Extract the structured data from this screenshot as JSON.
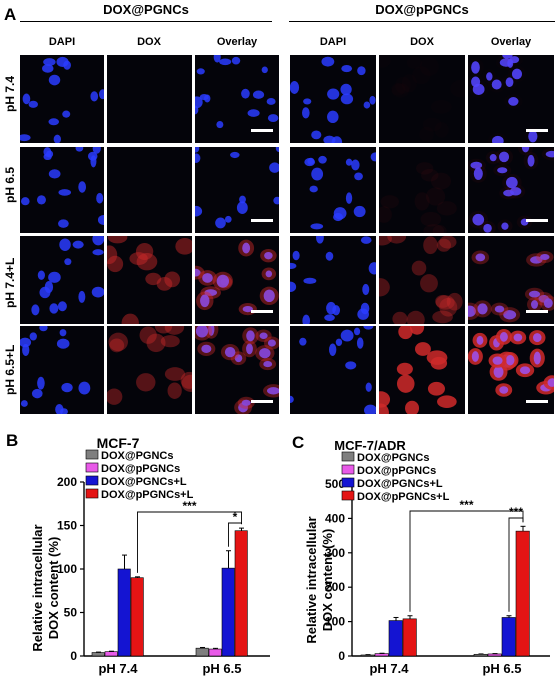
{
  "panel_a": {
    "letter": "A",
    "groups": [
      "DOX@PGNCs",
      "DOX@pPGNCs"
    ],
    "columns": [
      "DAPI",
      "DOX",
      "Overlay",
      "DAPI",
      "DOX",
      "Overlay"
    ],
    "rows": [
      "pH 7.4",
      "pH 6.5",
      "pH 7.4+L",
      "pH 6.5+L"
    ],
    "red_intensity": [
      [
        0,
        0.02
      ],
      [
        0,
        0.05
      ],
      [
        0.45,
        0.35
      ],
      [
        0.4,
        0.85
      ]
    ]
  },
  "colors": {
    "DOX@PGNCs": "#7f7f7f",
    "DOX@pPGNCs": "#e85ae8",
    "DOX@PGNCs+L": "#1414d2",
    "DOX@pPGNCs+L": "#e41414",
    "dapi": "#2a3cff",
    "dox": "#d02a2a"
  },
  "chart_data": [
    {
      "type": "bar",
      "panel": "B",
      "title": "MCF-7",
      "ylabel": "Relative intracellular DOX content (%)",
      "ylabel_lines": [
        "Relative intracellular",
        "DOX content (%)"
      ],
      "ylim": [
        0,
        200
      ],
      "yticks": [
        0,
        50,
        100,
        150,
        200
      ],
      "categories": [
        "pH 7.4",
        "pH 6.5"
      ],
      "legend_position": "top-left",
      "series": [
        {
          "name": "DOX@PGNCs",
          "values": [
            4,
            9
          ],
          "errors": [
            0.5,
            0.8
          ]
        },
        {
          "name": "DOX@pPGNCs",
          "values": [
            5,
            8
          ],
          "errors": [
            0.5,
            0.8
          ]
        },
        {
          "name": "DOX@PGNCs+L",
          "values": [
            100,
            101
          ],
          "errors": [
            16,
            20
          ]
        },
        {
          "name": "DOX@pPGNCs+L",
          "values": [
            90,
            144
          ],
          "errors": [
            1,
            3
          ]
        }
      ],
      "annotations": [
        "***",
        "*"
      ]
    },
    {
      "type": "bar",
      "panel": "C",
      "title": "MCF-7/ADR",
      "ylabel": "Relative intracellular DOX content (%)",
      "ylabel_lines": [
        "Relative intracellular",
        "DOX content (%)"
      ],
      "ylim": [
        0,
        500
      ],
      "yticks": [
        0,
        100,
        200,
        300,
        400,
        500
      ],
      "categories": [
        "pH 7.4",
        "pH 6.5"
      ],
      "legend_position": "top-left",
      "series": [
        {
          "name": "DOX@PGNCs",
          "values": [
            3,
            5
          ],
          "errors": [
            1,
            1
          ]
        },
        {
          "name": "DOX@pPGNCs",
          "values": [
            7,
            6
          ],
          "errors": [
            1,
            1
          ]
        },
        {
          "name": "DOX@PGNCs+L",
          "values": [
            103,
            112
          ],
          "errors": [
            9,
            5
          ]
        },
        {
          "name": "DOX@pPGNCs+L",
          "values": [
            108,
            363
          ],
          "errors": [
            9,
            14
          ]
        }
      ],
      "annotations": [
        "***",
        "***"
      ]
    }
  ]
}
